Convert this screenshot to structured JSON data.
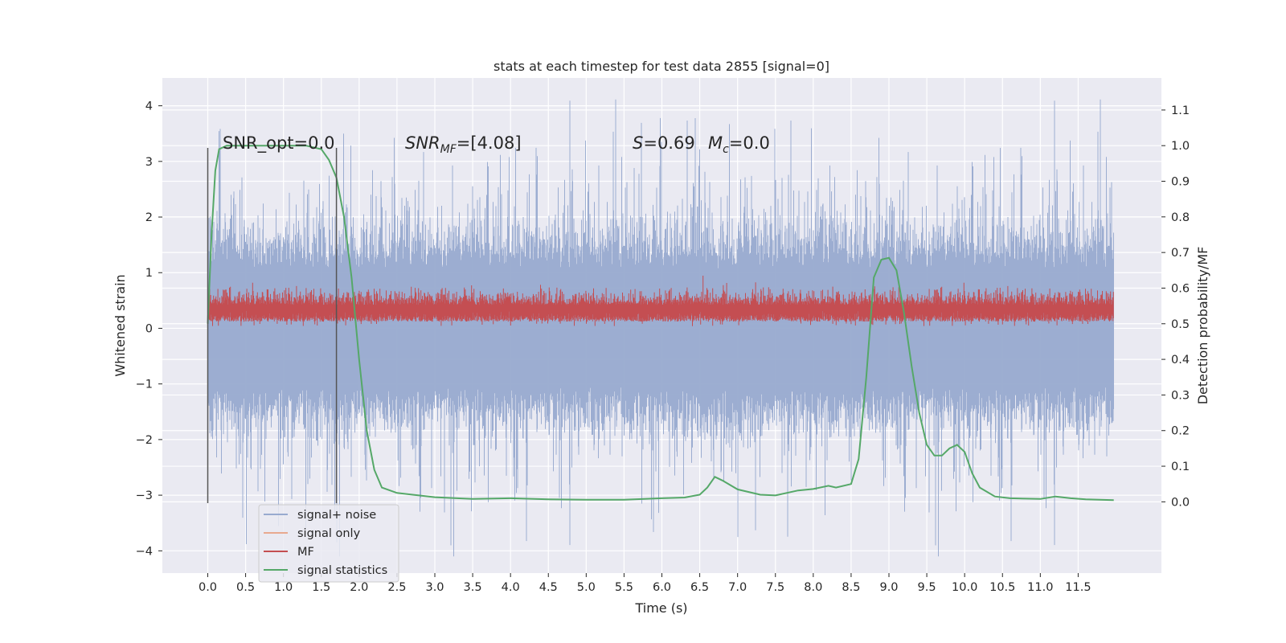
{
  "chart_data": {
    "type": "line",
    "title": "stats at each timestep for test data 2855 [signal=0]",
    "xlabel": "Time (s)",
    "ylabel_left": "Whitened strain",
    "ylabel_right": "Detection probability/MF",
    "xlim": [
      -0.6,
      12.6
    ],
    "ylim_left": [
      -4.4,
      4.5
    ],
    "ylim_right": [
      -0.2,
      1.19
    ],
    "x_ticks": [
      "0.0",
      "0.5",
      "1.0",
      "1.5",
      "2.0",
      "2.5",
      "3.0",
      "3.5",
      "4.0",
      "4.5",
      "5.0",
      "5.5",
      "6.0",
      "6.5",
      "7.0",
      "7.5",
      "8.0",
      "8.5",
      "9.0",
      "9.5",
      "10.0",
      "10.5",
      "11.0",
      "11.5"
    ],
    "y_ticks_left": [
      "−4",
      "−3",
      "−2",
      "−1",
      "0",
      "1",
      "2",
      "3",
      "4"
    ],
    "y_ticks_right": [
      "0.0",
      "0.1",
      "0.2",
      "0.3",
      "0.4",
      "0.5",
      "0.6",
      "0.7",
      "0.8",
      "0.9",
      "1.0",
      "1.1"
    ],
    "grid": true,
    "legend_position": "bottom-left",
    "colors": {
      "background": "#eaeaf2",
      "grid": "#ffffff",
      "signal_noise": "#98aacf",
      "signal_only": "#e8a98f",
      "mf": "#c44e52",
      "stat": "#55a868",
      "marker": "#555555"
    },
    "annotations": {
      "snr_opt": "SNR_opt=0.0",
      "snr_mf_main": "SNR",
      "snr_mf_sub": "MF",
      "snr_mf_value": "=[4.08]",
      "s_symbol": "S",
      "s_value": "=0.69",
      "mc_main": "M",
      "mc_sub": "c",
      "mc_value": "=0.0"
    },
    "markers_x": [
      0.0,
      1.7
    ],
    "series": [
      {
        "name": "signal+ noise",
        "description": "noise band, roughly ±1.3 with spikes up to ±4",
        "x_range": [
          0.0,
          11.97
        ]
      },
      {
        "name": "signal only",
        "values": []
      },
      {
        "name": "MF",
        "description": "positive band between about 0.05 and 0.7",
        "x_range": [
          0.0,
          11.97
        ]
      },
      {
        "name": "signal statistics",
        "x": [
          0.0,
          0.05,
          0.1,
          0.15,
          0.25,
          0.5,
          1.0,
          1.3,
          1.5,
          1.6,
          1.7,
          1.8,
          1.9,
          2.0,
          2.1,
          2.2,
          2.3,
          2.5,
          3.0,
          3.5,
          4.0,
          4.5,
          5.0,
          5.5,
          6.0,
          6.3,
          6.5,
          6.6,
          6.7,
          6.8,
          7.0,
          7.3,
          7.5,
          7.8,
          8.0,
          8.2,
          8.3,
          8.5,
          8.6,
          8.7,
          8.8,
          8.9,
          9.0,
          9.1,
          9.2,
          9.3,
          9.4,
          9.5,
          9.6,
          9.7,
          9.8,
          9.9,
          10.0,
          10.1,
          10.2,
          10.4,
          10.6,
          11.0,
          11.2,
          11.4,
          11.6,
          11.97
        ],
        "values": [
          0.5,
          0.75,
          0.93,
          0.99,
          1.0,
          1.0,
          1.0,
          1.0,
          0.99,
          0.96,
          0.91,
          0.8,
          0.63,
          0.4,
          0.2,
          0.09,
          0.04,
          0.025,
          0.013,
          0.008,
          0.01,
          0.007,
          0.006,
          0.006,
          0.01,
          0.012,
          0.02,
          0.04,
          0.07,
          0.06,
          0.035,
          0.02,
          0.018,
          0.032,
          0.036,
          0.045,
          0.04,
          0.05,
          0.12,
          0.35,
          0.63,
          0.68,
          0.685,
          0.65,
          0.53,
          0.38,
          0.25,
          0.16,
          0.13,
          0.13,
          0.15,
          0.16,
          0.14,
          0.08,
          0.04,
          0.015,
          0.01,
          0.008,
          0.015,
          0.01,
          0.007,
          0.005
        ]
      }
    ]
  }
}
